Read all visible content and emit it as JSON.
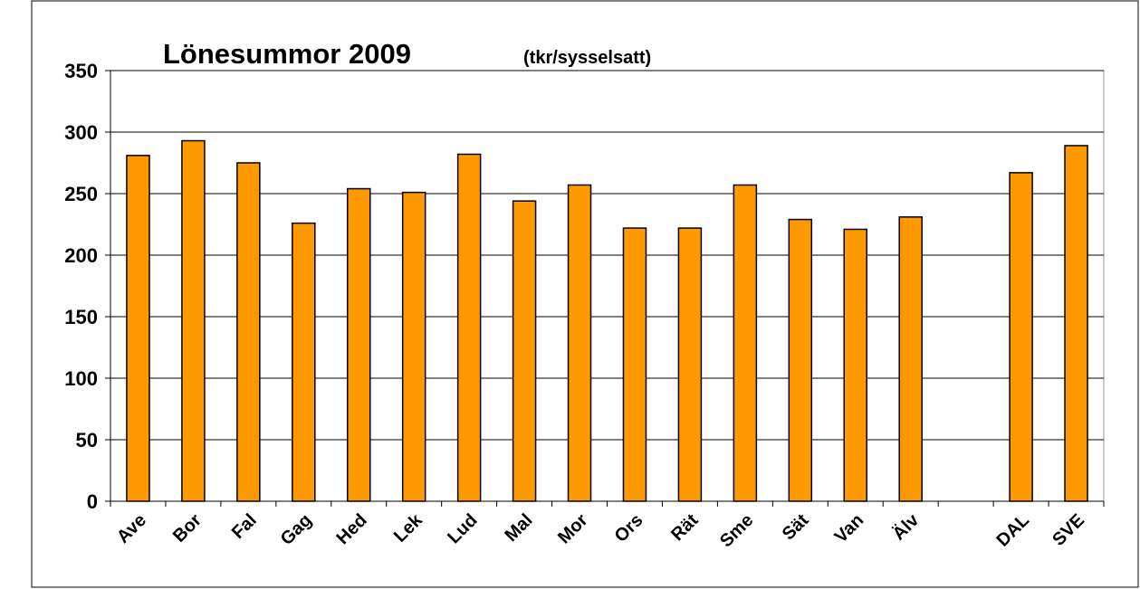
{
  "chart_data": {
    "type": "bar",
    "title": "Lönesummor 2009",
    "subtitle": "(tkr/sysselsatt)",
    "categories": [
      "Ave",
      "Bor",
      "Fal",
      "Gag",
      "Hed",
      "Lek",
      "Lud",
      "Mal",
      "Mor",
      "Ors",
      "Rät",
      "Sme",
      "Sät",
      "Van",
      "Älv",
      null,
      "DAL",
      "SVE"
    ],
    "values": [
      281,
      293,
      275,
      226,
      254,
      251,
      282,
      244,
      257,
      222,
      222,
      257,
      229,
      221,
      231,
      null,
      267,
      289
    ],
    "color": "#ff9900",
    "ylim": [
      0,
      350
    ],
    "yticks": [
      0,
      50,
      100,
      150,
      200,
      250,
      300,
      350
    ],
    "grid": true
  }
}
